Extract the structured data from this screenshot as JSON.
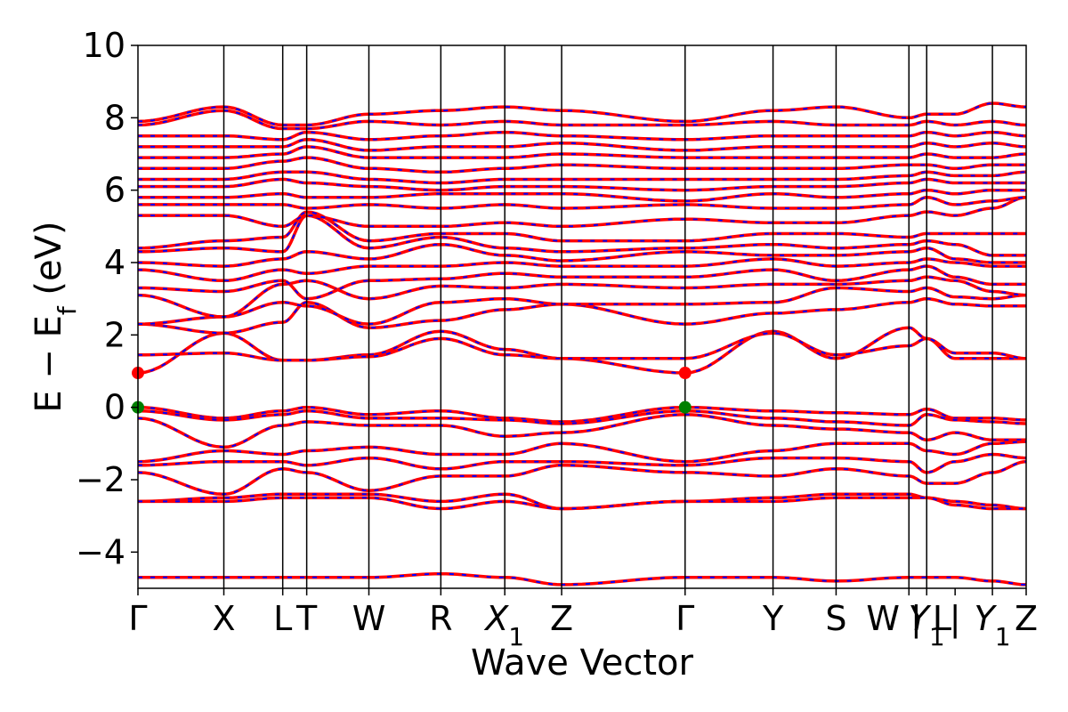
{
  "chart_data": {
    "type": "line",
    "title": "",
    "xlabel": "Wave Vector",
    "ylabel_parts": {
      "main": "E − E",
      "sub": "f",
      "unit": " (eV)"
    },
    "ylim": [
      -5,
      10
    ],
    "yticks": [
      10,
      8,
      6,
      4,
      2,
      0,
      -2,
      -4
    ],
    "ytick_labels": [
      "10",
      "8",
      "6",
      "4",
      "2",
      "0",
      "−2",
      "−4"
    ],
    "xlim": [
      0,
      1
    ],
    "kpoints": [
      {
        "label": "Γ",
        "sub": "",
        "x": 0.0
      },
      {
        "label": "X",
        "sub": "",
        "x": 0.0967
      },
      {
        "label": "L",
        "sub": "",
        "x": 0.163
      },
      {
        "label": "T",
        "sub": "",
        "x": 0.19
      },
      {
        "label": "W",
        "sub": "",
        "x": 0.26
      },
      {
        "label": "R",
        "sub": "",
        "x": 0.341
      },
      {
        "label": "X",
        "sub": "1",
        "x": 0.413
      },
      {
        "label": "Z",
        "sub": "",
        "x": 0.477
      },
      {
        "label": "Γ",
        "sub": "",
        "x": 0.616
      },
      {
        "label": "Y",
        "sub": "",
        "x": 0.715
      },
      {
        "label": "S",
        "sub": "",
        "x": 0.786
      },
      {
        "label": "W | L",
        "sub": "",
        "x": 0.868
      },
      {
        "label": "Y",
        "sub": "1",
        "x": 0.888
      },
      {
        "label": "| ",
        "sub": "",
        "x": 0.92
      },
      {
        "label": "Y",
        "sub": "1",
        "x": 0.962
      },
      {
        "label": "Z",
        "sub": "",
        "x": 1.0
      }
    ],
    "special_points": [
      {
        "x": 0.0,
        "y": 0.95,
        "color": "#ff0000",
        "note": "CBM"
      },
      {
        "x": 0.616,
        "y": 0.95,
        "color": "#ff0000",
        "note": "CBM"
      },
      {
        "x": 0.0,
        "y": 0.0,
        "color": "#008000",
        "note": "VBM"
      },
      {
        "x": 0.616,
        "y": 0.0,
        "color": "#008000",
        "note": "VBM"
      }
    ],
    "series": [
      {
        "spin_up_color": "#0000ff",
        "spin_down_color": "#ff0000",
        "values_at_kpoints": [
          0.95,
          2.05,
          1.3,
          1.3,
          1.45,
          2.1,
          1.6,
          1.35,
          0.95,
          2.1,
          1.35,
          2.2,
          1.9,
          1.35,
          1.35,
          1.35
        ]
      },
      {
        "values_at_kpoints": [
          1.45,
          1.5,
          1.3,
          1.3,
          1.4,
          1.9,
          1.45,
          1.35,
          1.35,
          2.05,
          1.45,
          1.7,
          1.9,
          1.5,
          1.5,
          1.35
        ]
      },
      {
        "values_at_kpoints": [
          2.3,
          2.05,
          2.35,
          2.9,
          2.2,
          2.4,
          2.7,
          2.85,
          2.3,
          2.6,
          2.7,
          2.9,
          3.0,
          2.85,
          2.8,
          2.8
        ]
      },
      {
        "values_at_kpoints": [
          2.3,
          2.5,
          2.9,
          2.8,
          2.3,
          2.9,
          3.0,
          2.85,
          2.85,
          2.9,
          3.3,
          3.2,
          3.3,
          3.05,
          3.0,
          3.1
        ]
      },
      {
        "values_at_kpoints": [
          3.1,
          2.5,
          3.4,
          3.5,
          3.0,
          3.35,
          3.3,
          3.4,
          3.3,
          3.4,
          3.4,
          3.5,
          3.6,
          3.5,
          3.2,
          3.1
        ]
      },
      {
        "values_at_kpoints": [
          3.3,
          3.2,
          3.5,
          3.0,
          3.5,
          3.55,
          3.7,
          3.6,
          3.6,
          3.8,
          3.5,
          3.8,
          3.9,
          3.6,
          3.4,
          3.4
        ]
      },
      {
        "values_at_kpoints": [
          3.8,
          3.5,
          3.8,
          3.7,
          3.9,
          3.9,
          4.0,
          3.9,
          3.9,
          4.1,
          3.9,
          4.0,
          4.1,
          4.0,
          3.9,
          3.9
        ]
      },
      {
        "values_at_kpoints": [
          4.0,
          3.9,
          4.1,
          4.3,
          4.1,
          4.5,
          4.2,
          4.05,
          4.3,
          4.2,
          4.2,
          4.3,
          4.4,
          4.1,
          4.0,
          4.0
        ]
      },
      {
        "values_at_kpoints": [
          4.3,
          4.4,
          4.3,
          5.3,
          4.4,
          4.7,
          4.4,
          4.3,
          4.4,
          4.5,
          4.4,
          4.5,
          4.6,
          4.5,
          4.2,
          4.2
        ]
      },
      {
        "values_at_kpoints": [
          4.4,
          4.6,
          4.7,
          5.4,
          4.6,
          4.8,
          4.8,
          4.6,
          4.6,
          4.8,
          4.8,
          4.7,
          4.8,
          4.8,
          4.8,
          4.8
        ]
      },
      {
        "values_at_kpoints": [
          5.3,
          5.3,
          5.0,
          5.3,
          5.0,
          5.0,
          5.1,
          5.0,
          5.2,
          5.1,
          5.1,
          5.3,
          5.4,
          5.3,
          5.5,
          5.8
        ]
      },
      {
        "values_at_kpoints": [
          5.6,
          5.6,
          5.6,
          5.5,
          5.6,
          5.5,
          5.6,
          5.5,
          5.6,
          5.5,
          5.5,
          5.6,
          5.8,
          5.6,
          5.7,
          5.8
        ]
      },
      {
        "values_at_kpoints": [
          5.8,
          5.8,
          5.9,
          5.8,
          5.8,
          5.9,
          5.9,
          5.9,
          5.7,
          5.9,
          5.8,
          5.9,
          6.0,
          5.9,
          6.0,
          6.0
        ]
      },
      {
        "values_at_kpoints": [
          6.1,
          6.1,
          6.3,
          6.2,
          6.1,
          6.0,
          6.1,
          6.1,
          6.0,
          6.1,
          6.1,
          6.2,
          6.3,
          6.2,
          6.2,
          6.2
        ]
      },
      {
        "values_at_kpoints": [
          6.3,
          6.3,
          6.5,
          6.5,
          6.3,
          6.2,
          6.3,
          6.3,
          6.3,
          6.3,
          6.3,
          6.4,
          6.5,
          6.4,
          6.4,
          6.5
        ]
      },
      {
        "values_at_kpoints": [
          6.6,
          6.6,
          6.8,
          6.9,
          6.6,
          6.5,
          6.6,
          6.7,
          6.6,
          6.6,
          6.6,
          6.7,
          6.7,
          6.6,
          6.7,
          6.7
        ]
      },
      {
        "values_at_kpoints": [
          6.9,
          6.9,
          7.0,
          7.2,
          6.9,
          6.9,
          6.9,
          7.0,
          6.9,
          6.9,
          6.9,
          6.9,
          7.0,
          6.9,
          6.9,
          7.0
        ]
      },
      {
        "values_at_kpoints": [
          7.2,
          7.2,
          7.2,
          7.4,
          7.1,
          7.2,
          7.2,
          7.3,
          7.1,
          7.2,
          7.2,
          7.2,
          7.3,
          7.2,
          7.3,
          7.2
        ]
      },
      {
        "values_at_kpoints": [
          7.5,
          7.5,
          7.4,
          7.6,
          7.4,
          7.5,
          7.6,
          7.5,
          7.4,
          7.5,
          7.5,
          7.5,
          7.6,
          7.5,
          7.6,
          7.5
        ]
      },
      {
        "values_at_kpoints": [
          7.8,
          8.2,
          7.7,
          7.7,
          7.9,
          7.8,
          7.9,
          7.8,
          7.8,
          7.9,
          7.8,
          7.8,
          7.9,
          7.8,
          7.9,
          7.8
        ]
      },
      {
        "values_at_kpoints": [
          7.9,
          8.3,
          7.8,
          7.8,
          8.1,
          8.2,
          8.3,
          8.2,
          7.9,
          8.2,
          8.3,
          8.0,
          8.1,
          8.1,
          8.4,
          8.3
        ]
      },
      {
        "values_at_kpoints": [
          0.0,
          -0.3,
          -0.1,
          0.0,
          -0.2,
          -0.1,
          -0.3,
          -0.4,
          0.0,
          -0.1,
          -0.15,
          -0.2,
          -0.05,
          -0.3,
          -0.3,
          -0.35
        ]
      },
      {
        "values_at_kpoints": [
          -0.1,
          -0.35,
          -0.2,
          -0.1,
          -0.3,
          -0.3,
          -0.35,
          -0.45,
          -0.1,
          -0.3,
          -0.4,
          -0.5,
          -0.2,
          -0.35,
          -0.4,
          -0.45
        ]
      },
      {
        "values_at_kpoints": [
          -0.3,
          -1.1,
          -0.5,
          -0.4,
          -0.5,
          -0.5,
          -0.8,
          -0.7,
          -0.2,
          -0.5,
          -0.6,
          -0.7,
          -0.9,
          -0.7,
          -0.9,
          -0.9
        ]
      },
      {
        "values_at_kpoints": [
          -1.5,
          -1.2,
          -1.3,
          -1.2,
          -1.1,
          -1.3,
          -1.3,
          -1.0,
          -1.5,
          -1.2,
          -1.0,
          -1.0,
          -1.2,
          -1.3,
          -1.0,
          -0.95
        ]
      },
      {
        "values_at_kpoints": [
          -1.6,
          -1.5,
          -1.5,
          -1.6,
          -1.4,
          -1.7,
          -1.5,
          -1.5,
          -1.6,
          -1.4,
          -1.4,
          -1.5,
          -1.8,
          -1.5,
          -1.3,
          -1.4
        ]
      },
      {
        "values_at_kpoints": [
          -1.8,
          -2.4,
          -1.7,
          -1.8,
          -2.3,
          -1.9,
          -1.9,
          -1.6,
          -1.8,
          -1.9,
          -1.7,
          -1.9,
          -2.1,
          -2.1,
          -1.8,
          -1.5
        ]
      },
      {
        "values_at_kpoints": [
          -2.6,
          -2.5,
          -2.4,
          -2.4,
          -2.4,
          -2.6,
          -2.4,
          -2.8,
          -2.6,
          -2.5,
          -2.4,
          -2.4,
          -2.5,
          -2.6,
          -2.7,
          -2.8
        ]
      },
      {
        "values_at_kpoints": [
          -2.6,
          -2.6,
          -2.5,
          -2.5,
          -2.5,
          -2.8,
          -2.6,
          -2.8,
          -2.6,
          -2.6,
          -2.5,
          -2.5,
          -2.5,
          -2.7,
          -2.8,
          -2.8
        ]
      },
      {
        "values_at_kpoints": [
          -4.7,
          -4.7,
          -4.7,
          -4.7,
          -4.7,
          -4.6,
          -4.7,
          -4.9,
          -4.7,
          -4.7,
          -4.8,
          -4.7,
          -4.7,
          -4.7,
          -4.8,
          -4.9
        ]
      }
    ]
  }
}
